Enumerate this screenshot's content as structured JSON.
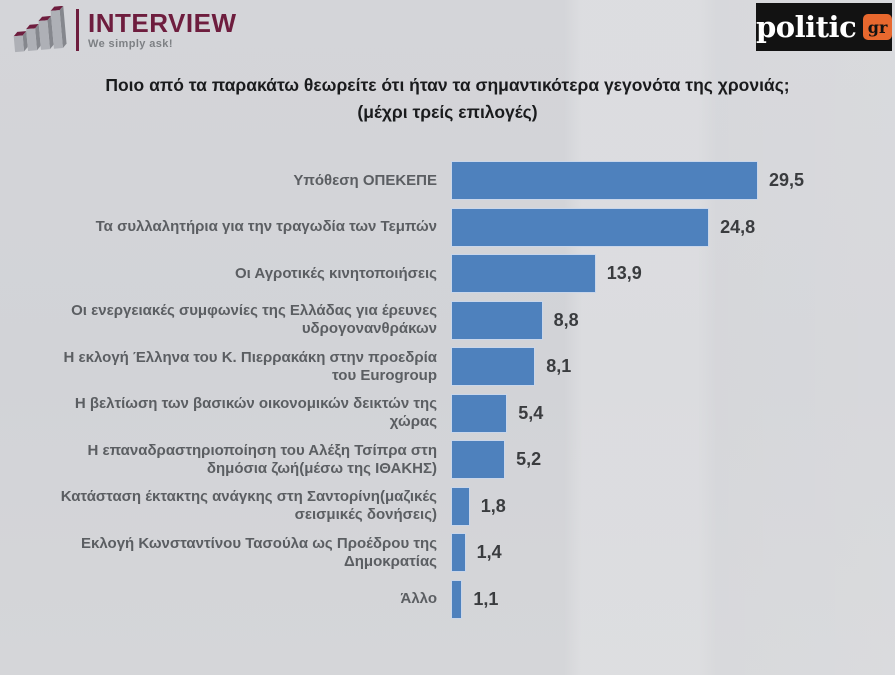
{
  "header": {
    "interview": {
      "name": "INTERVIEW",
      "tagline": "We simply ask!",
      "brand_color": "#6e1d3e",
      "icon": "bar-chart-3d-icon"
    },
    "politic": {
      "name": "politic",
      "suffix": "gr",
      "bg_color": "#121212",
      "accent_color": "#e8682e"
    }
  },
  "title": {
    "line1": "Ποιο από τα παρακάτω θεωρείτε ότι ήταν τα σημαντικότερα γεγονότα της χρονιάς;",
    "line2": "(μέχρι τρείς επιλογές)"
  },
  "chart_data": {
    "type": "bar",
    "orientation": "horizontal",
    "title": "Ποιο από τα παρακάτω θεωρείτε ότι ήταν τα σημαντικότερα γεγονότα της χρονιάς; (μέχρι τρείς επιλογές)",
    "categories": [
      "Υπόθεση ΟΠΕΚΕΠΕ",
      "Τα συλλαλητήρια για την τραγωδία των Τεμπών",
      "Οι Αγροτικές κινητοποιήσεις",
      "Οι ενεργειακές συμφωνίες της Ελλάδας για έρευνες υδρογονανθράκων",
      "Η εκλογή Έλληνα του Κ. Πιερρακάκη στην προεδρία του Eurogroup",
      "Η βελτίωση των βασικών οικονομικών δεικτών της χώρας",
      "Η επαναδραστηριοποίηση του Αλέξη Τσίπρα στη δημόσια ζωή(μέσω της ΙΘΑΚΗΣ)",
      "Κατάσταση έκτακτης ανάγκης στη Σαντορίνη(μαζικές σεισμικές δονήσεις)",
      "Εκλογή Κωνσταντίνου Τασούλα ως Προέδρου της Δημοκρατίας",
      "Άλλο"
    ],
    "values": [
      29.5,
      24.8,
      13.9,
      8.8,
      8.1,
      5.4,
      5.2,
      1.8,
      1.4,
      1.1
    ],
    "value_labels": [
      "29,5",
      "24,8",
      "13,9",
      "8,8",
      "8,1",
      "5,4",
      "5,2",
      "1,8",
      "1,4",
      "1,1"
    ],
    "xlim": [
      0,
      30
    ],
    "bar_color": "#4e81bd",
    "grid": false,
    "legend": false,
    "value_label_position": "right-of-bar",
    "category_label_position": "left-of-bar"
  }
}
